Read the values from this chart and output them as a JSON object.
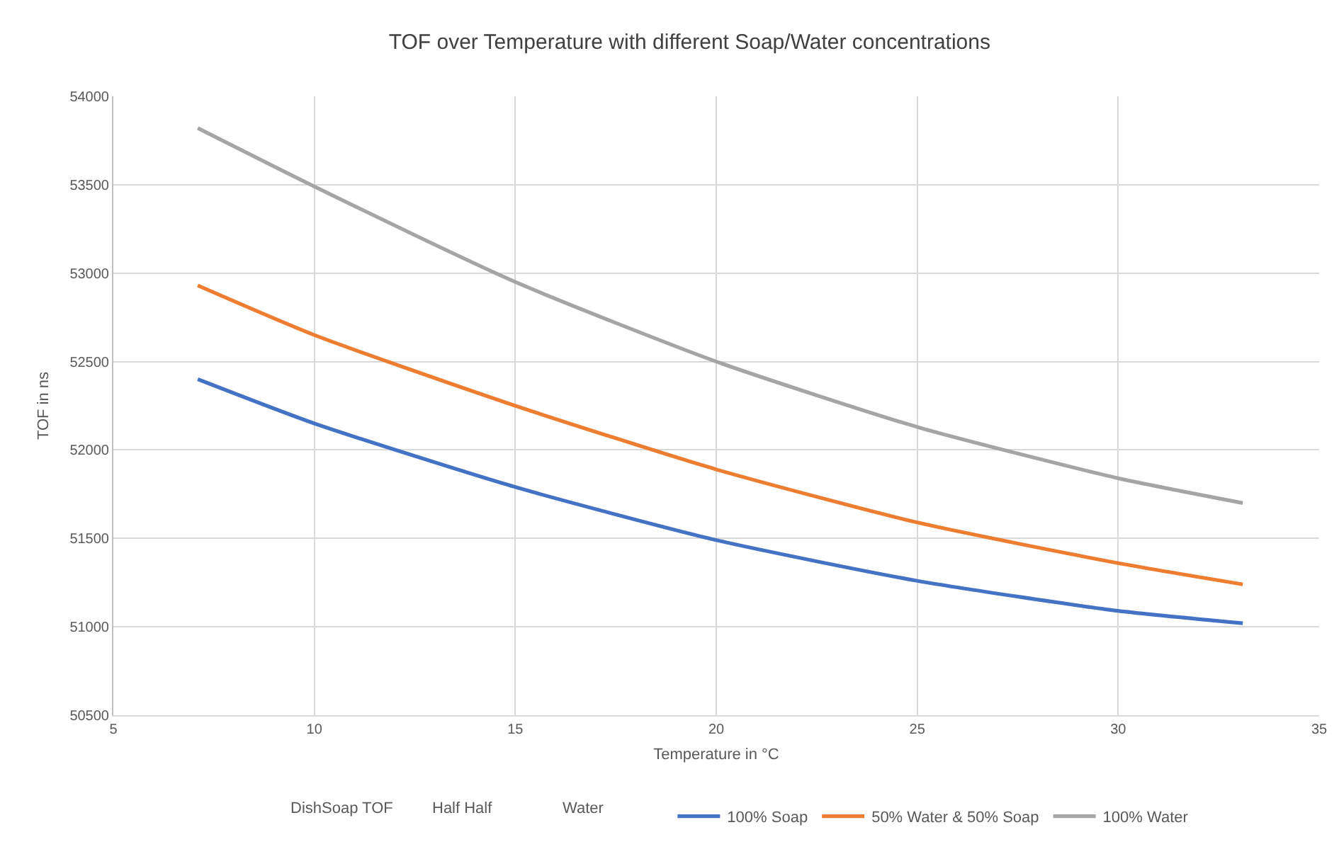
{
  "chart_data": {
    "type": "line",
    "title": "TOF over Temperature with different Soap/Water concentrations",
    "xlabel": "Temperature in °C",
    "ylabel": "TOF in ns",
    "x": [
      7.1,
      10,
      15,
      20,
      25,
      30,
      33.1
    ],
    "series": [
      {
        "name": "100% Soap",
        "color": "#4472c4",
        "values": [
          52400,
          52150,
          51790,
          51490,
          51260,
          51090,
          51020
        ]
      },
      {
        "name": "50% Water & 50% Soap",
        "color": "#ed7d31",
        "values": [
          52930,
          52650,
          52250,
          51890,
          51590,
          51360,
          51240
        ]
      },
      {
        "name": "100% Water",
        "color": "#a5a5a5",
        "values": [
          53820,
          53490,
          52950,
          52500,
          52130,
          51840,
          51700
        ]
      }
    ],
    "annotations": [
      "DishSoap TOF",
      "Half Half",
      "Water"
    ],
    "xlim": [
      5,
      35
    ],
    "xticks": [
      5,
      10,
      15,
      20,
      25,
      30,
      35
    ],
    "ylim": [
      50500,
      54000
    ],
    "yticks": [
      50500,
      51000,
      51500,
      52000,
      52500,
      53000,
      53500,
      54000
    ],
    "grid": true,
    "legend": "bottom",
    "marker": "none",
    "line_style": "solid"
  }
}
